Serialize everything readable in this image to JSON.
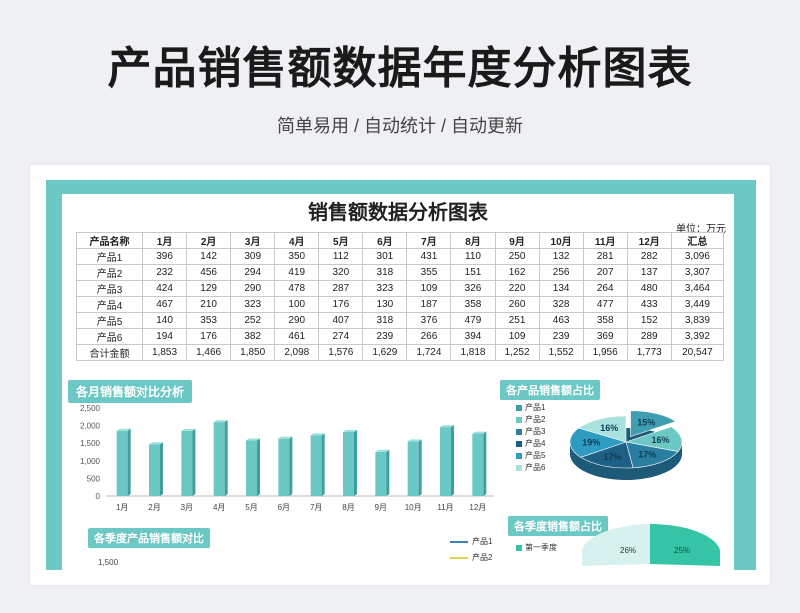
{
  "header": {
    "title": "产品销售额数据年度分析图表",
    "subtitle": "简单易用 / 自动统计 / 自动更新"
  },
  "sheet": {
    "title": "销售额数据分析图表",
    "unit": "单位：万元",
    "table": {
      "headers": [
        "产品名称",
        "1月",
        "2月",
        "3月",
        "4月",
        "5月",
        "6月",
        "7月",
        "8月",
        "9月",
        "10月",
        "11月",
        "12月",
        "汇总"
      ],
      "rows": [
        [
          "产品1",
          "396",
          "142",
          "309",
          "350",
          "112",
          "301",
          "431",
          "110",
          "250",
          "132",
          "281",
          "282",
          "3,096"
        ],
        [
          "产品2",
          "232",
          "456",
          "294",
          "419",
          "320",
          "318",
          "355",
          "151",
          "162",
          "256",
          "207",
          "137",
          "3,307"
        ],
        [
          "产品3",
          "424",
          "129",
          "290",
          "478",
          "287",
          "323",
          "109",
          "326",
          "220",
          "134",
          "264",
          "480",
          "3,464"
        ],
        [
          "产品4",
          "467",
          "210",
          "323",
          "100",
          "176",
          "130",
          "187",
          "358",
          "260",
          "328",
          "477",
          "433",
          "3,449"
        ],
        [
          "产品5",
          "140",
          "353",
          "252",
          "290",
          "407",
          "318",
          "376",
          "479",
          "251",
          "463",
          "358",
          "152",
          "3,839"
        ],
        [
          "产品6",
          "194",
          "176",
          "382",
          "461",
          "274",
          "239",
          "266",
          "394",
          "109",
          "239",
          "369",
          "289",
          "3,392"
        ],
        [
          "合计金额",
          "1,853",
          "1,466",
          "1,850",
          "2,098",
          "1,576",
          "1,629",
          "1,724",
          "1,818",
          "1,252",
          "1,552",
          "1,956",
          "1,773",
          "20,547"
        ]
      ]
    },
    "monthly_label": "各月销售额对比分析",
    "pie_label": "各产品销售额占比",
    "quarter_label": "各季度产品销售额对比",
    "quarter_pie_label": "各季度销售额占比",
    "pie_legend": [
      "产品1",
      "产品2",
      "产品3",
      "产品4",
      "产品5",
      "产品6"
    ],
    "pie_colors": [
      "#3f9fb0",
      "#6cc8c4",
      "#2a7fa0",
      "#1e5f86",
      "#2e9bc0",
      "#a7e2df"
    ],
    "pie_slice_labels": [
      "15%",
      "16%",
      "17%",
      "17%",
      "19%",
      "16%"
    ],
    "quarter_legend": [
      "产品1",
      "产品2"
    ],
    "quarter_legend_colors": [
      "#3d7fc0",
      "#e8d24a"
    ],
    "quarter_pie_legend": "第一季度",
    "quarter_pie_labels": [
      "26%",
      "25%"
    ],
    "quarter_ytick": "1,500",
    "accent": "#6cc8c4"
  },
  "chart_data": [
    {
      "type": "bar",
      "title": "各月销售额对比分析",
      "categories": [
        "1月",
        "2月",
        "3月",
        "4月",
        "5月",
        "6月",
        "7月",
        "8月",
        "9月",
        "10月",
        "11月",
        "12月"
      ],
      "values": [
        1853,
        1466,
        1850,
        2098,
        1576,
        1629,
        1724,
        1818,
        1252,
        1552,
        1956,
        1773
      ],
      "ylim": [
        0,
        2500
      ],
      "yticks": [
        "2,500",
        "2,000",
        "1,500",
        "1,000",
        "500",
        "0"
      ],
      "grid": false
    },
    {
      "type": "pie",
      "title": "各产品销售额占比",
      "categories": [
        "产品1",
        "产品2",
        "产品3",
        "产品4",
        "产品5",
        "产品6"
      ],
      "values": [
        15,
        16,
        17,
        17,
        19,
        16
      ]
    }
  ]
}
